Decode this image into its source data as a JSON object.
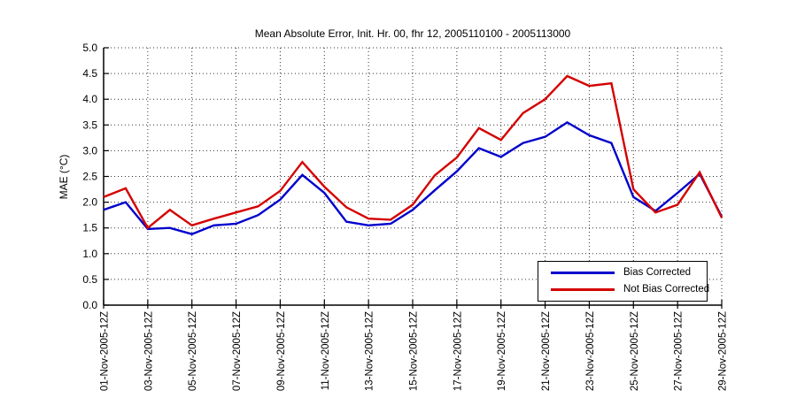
{
  "title": "Mean Absolute Error, Init. Hr. 00, fhr 12, 2005110100 - 2005113000",
  "legend": {
    "items": [
      {
        "label": "Bias Corrected",
        "color": "#0000cc"
      },
      {
        "label": "Not Bias Corrected",
        "color": "#d40000"
      }
    ]
  },
  "chart_data": {
    "type": "line",
    "title": "Mean Absolute Error, Init. Hr. 00, fhr 12, 2005110100 - 2005113000",
    "xlabel": "",
    "ylabel": "MAE (°C)",
    "ylim": [
      0.0,
      5.0
    ],
    "ytick_step": 0.5,
    "grid": "dotted",
    "legend_position": "lower right",
    "x_description": "daily values, 01-Nov-2005-12Z through 29-Nov-2005-12Z",
    "x_days": [
      1,
      2,
      3,
      4,
      5,
      6,
      7,
      8,
      9,
      10,
      11,
      12,
      13,
      14,
      15,
      16,
      17,
      18,
      19,
      20,
      21,
      22,
      23,
      24,
      25,
      26,
      27,
      28,
      29
    ],
    "xtick_days": [
      1,
      3,
      5,
      7,
      9,
      11,
      13,
      15,
      17,
      19,
      21,
      23,
      25,
      27,
      29
    ],
    "xtick_labels": [
      "01-Nov-2005-12Z",
      "03-Nov-2005-12Z",
      "05-Nov-2005-12Z",
      "07-Nov-2005-12Z",
      "09-Nov-2005-12Z",
      "11-Nov-2005-12Z",
      "13-Nov-2005-12Z",
      "15-Nov-2005-12Z",
      "17-Nov-2005-12Z",
      "19-Nov-2005-12Z",
      "21-Nov-2005-12Z",
      "23-Nov-2005-12Z",
      "25-Nov-2005-12Z",
      "27-Nov-2005-12Z",
      "29-Nov-2005-12Z"
    ],
    "series": [
      {
        "name": "Bias Corrected",
        "color": "#0000cc",
        "values": [
          1.85,
          2.0,
          1.48,
          1.5,
          1.38,
          1.55,
          1.58,
          1.75,
          2.05,
          2.53,
          2.18,
          1.62,
          1.55,
          1.58,
          1.85,
          2.23,
          2.6,
          3.05,
          2.88,
          3.15,
          3.27,
          3.55,
          3.3,
          3.15,
          2.1,
          1.83,
          2.18,
          2.55,
          1.72
        ]
      },
      {
        "name": "Not Bias Corrected",
        "color": "#d40000",
        "values": [
          2.1,
          2.27,
          1.5,
          1.85,
          1.55,
          1.68,
          1.8,
          1.92,
          2.22,
          2.78,
          2.3,
          1.9,
          1.68,
          1.66,
          1.95,
          2.52,
          2.87,
          3.44,
          3.21,
          3.73,
          4.0,
          4.45,
          4.26,
          4.31,
          2.25,
          1.8,
          1.95,
          2.58,
          1.7
        ]
      }
    ]
  }
}
